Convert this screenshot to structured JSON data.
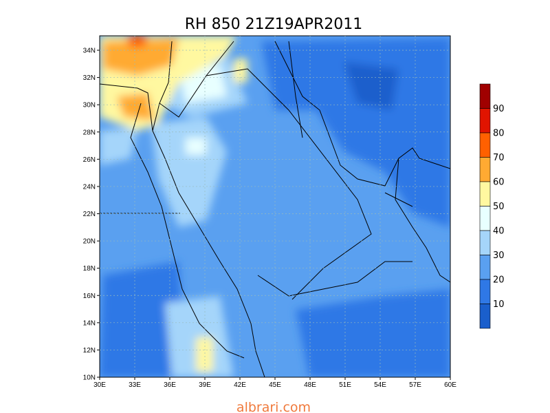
{
  "title": "RH 850 21Z19APR2011",
  "lat_labels": [
    "34N",
    "32N",
    "30N",
    "28N",
    "26N",
    "24N",
    "22N",
    "20N",
    "18N",
    "16N",
    "14N",
    "12N",
    "10N"
  ],
  "lon_labels": [
    "30E",
    "33E",
    "36E",
    "39E",
    "42E",
    "45E",
    "48E",
    "51E",
    "54E",
    "57E",
    "60E"
  ],
  "colorbar": {
    "labels": [
      "90",
      "80",
      "70",
      "60",
      "50",
      "40",
      "30",
      "20",
      "10"
    ],
    "colors": [
      "#a00000",
      "#e11400",
      "#ff6000",
      "#ffaa32",
      "#fff8a0",
      "#e8ffff",
      "#a5d5fa",
      "#5aa0f0",
      "#2f78e6",
      "#1a5fcc"
    ]
  },
  "watermark": "albrari.com"
}
